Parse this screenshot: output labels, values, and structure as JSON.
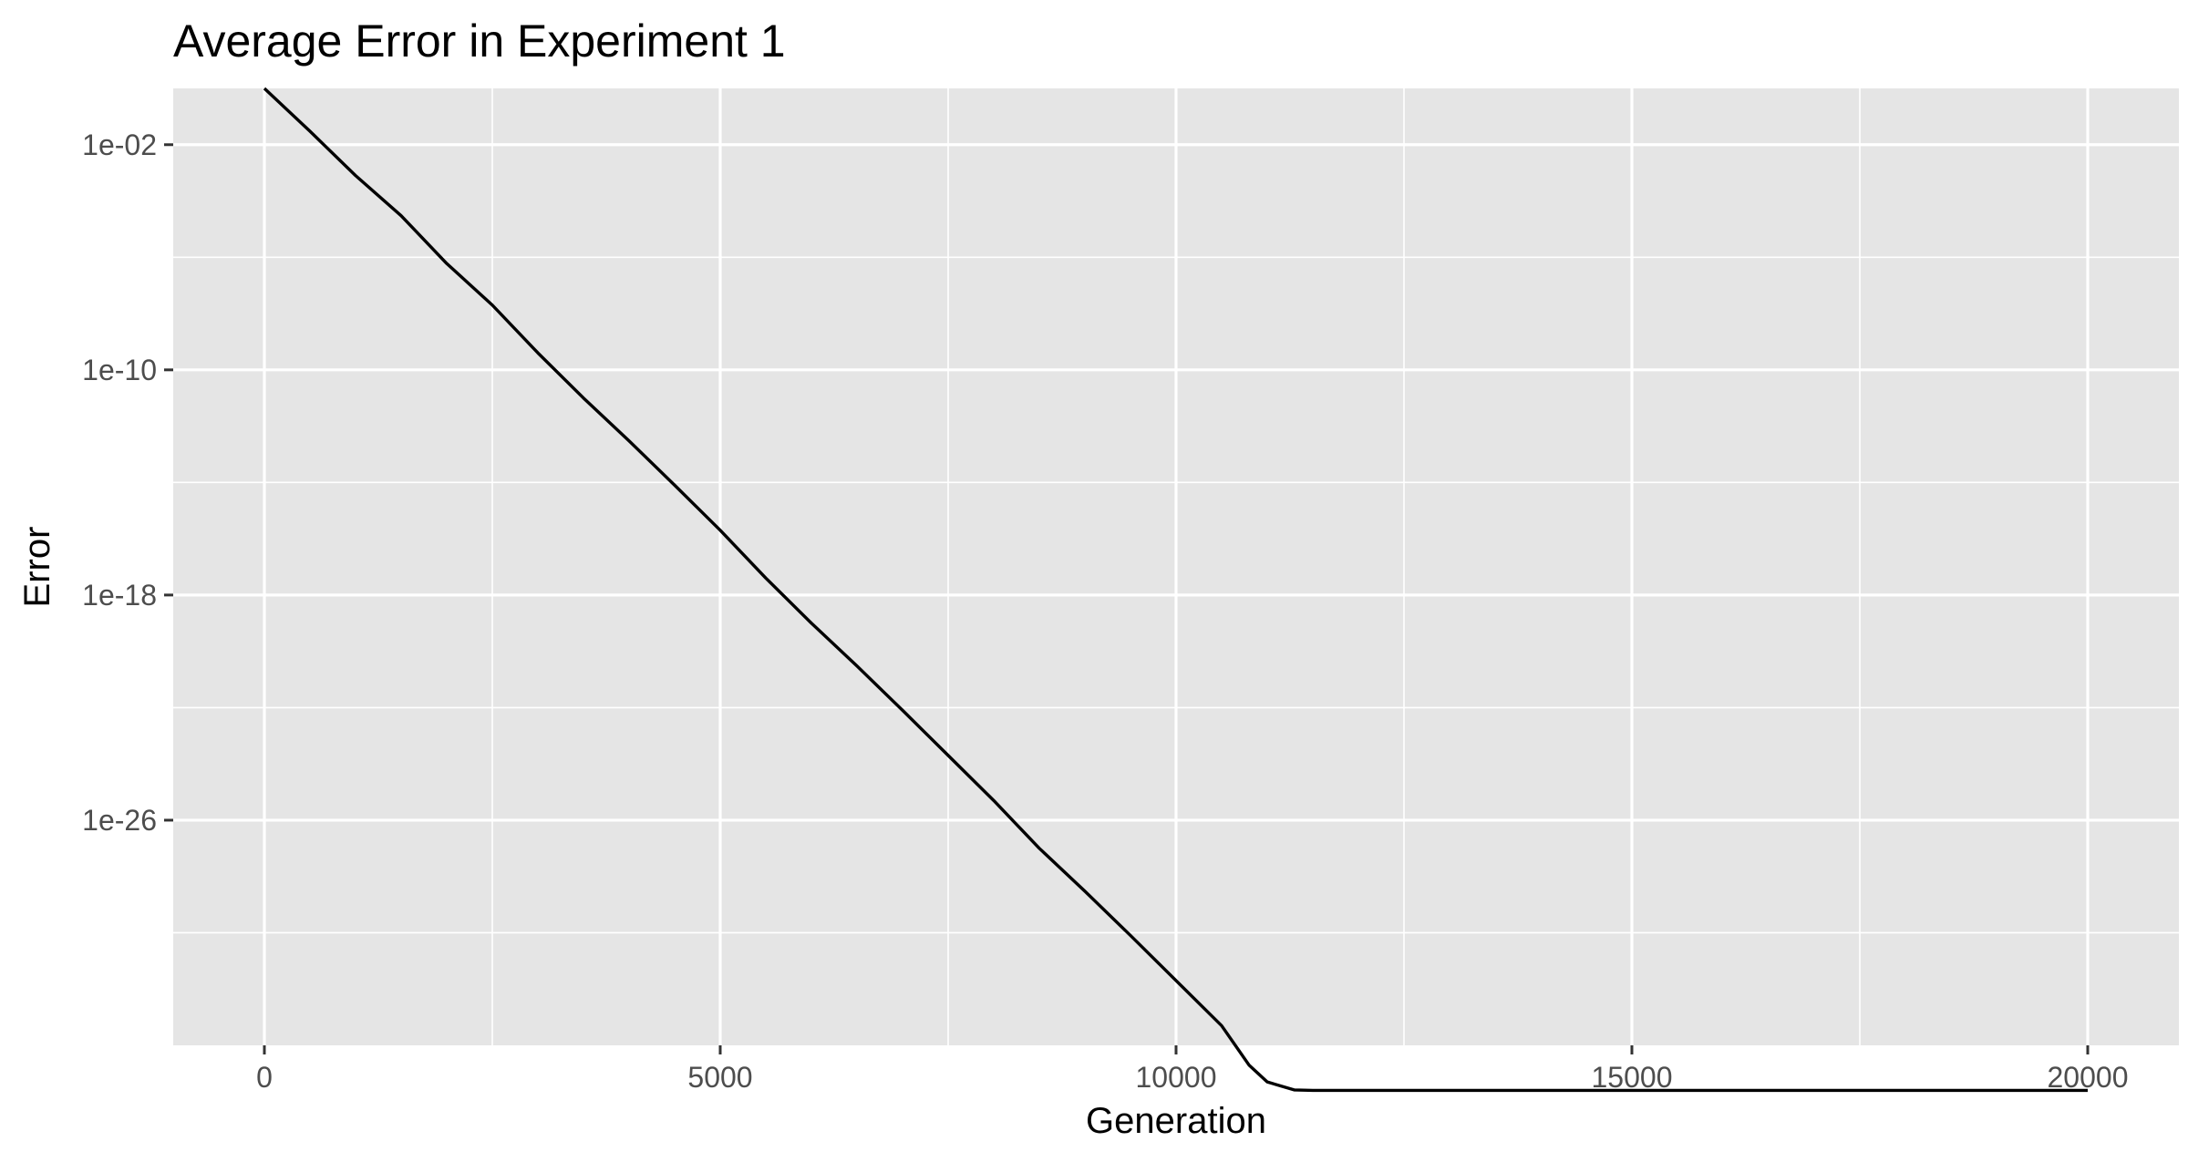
{
  "chart_data": {
    "type": "line",
    "title": "Average Error in Experiment 1",
    "xlabel": "Generation",
    "ylabel": "Error",
    "x_scale": "linear",
    "y_scale": "log10",
    "xlim": [
      -1000,
      21000
    ],
    "ylim": [
      1e-34,
      1.0
    ],
    "x_ticks": [
      0,
      5000,
      10000,
      15000,
      20000
    ],
    "x_tick_labels": [
      "0",
      "5000",
      "10000",
      "15000",
      "20000"
    ],
    "y_ticks": [
      1e-26,
      1e-18,
      1e-10,
      0.01
    ],
    "y_tick_labels": [
      "1e-26",
      "1e-18",
      "1e-10",
      "1e-02"
    ],
    "grid": true,
    "legend": "none",
    "line_color": "#000000",
    "panel_color": "#e5e5e5",
    "x": [
      0,
      500,
      1000,
      1500,
      2000,
      2500,
      3000,
      3500,
      4000,
      4500,
      5000,
      5500,
      6000,
      6500,
      7000,
      7500,
      8000,
      8500,
      9000,
      9500,
      10000,
      10500,
      10800,
      11000,
      11300,
      11500,
      12000,
      13000,
      14000,
      15000,
      16000,
      17000,
      18000,
      19000,
      20000
    ],
    "y": [
      1.0,
      0.03,
      0.0008,
      3e-05,
      6e-07,
      2e-08,
      4e-10,
      1e-11,
      3e-13,
      8e-15,
      2e-16,
      4e-18,
      1e-19,
      3e-21,
      8e-23,
      2e-24,
      5e-26,
      1e-27,
      3e-29,
      8e-31,
      2e-32,
      5e-34,
      2e-35,
      5e-36,
      2.6e-36,
      2.5e-36,
      2.5e-36,
      2.5e-36,
      2.5e-36,
      2.5e-36,
      2.5e-36,
      2.5e-36,
      2.5e-36,
      2.5e-36,
      2.5e-36
    ]
  }
}
